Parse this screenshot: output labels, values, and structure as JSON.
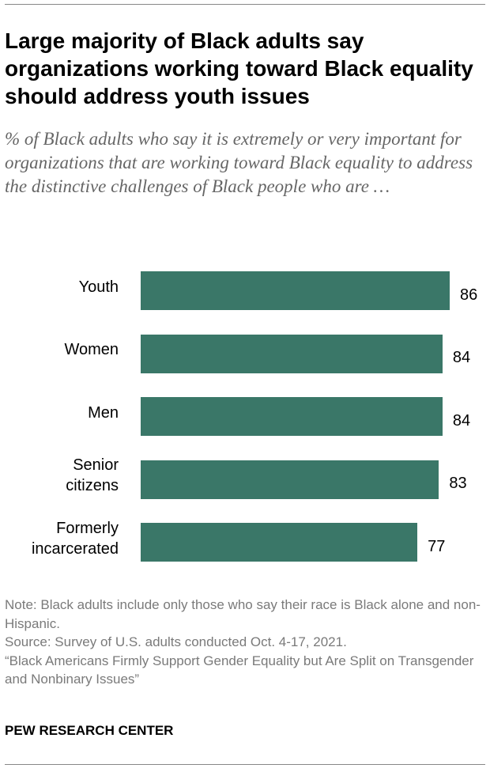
{
  "title": "Large majority of Black adults say organizations working toward Black equality should address youth issues",
  "subtitle": "% of Black adults who say it is extremely or very important for organizations that are working toward Black equality to address the distinctive challenges of Black people who are …",
  "chart_data": {
    "type": "bar",
    "orientation": "horizontal",
    "categories": [
      "Youth",
      "Women",
      "Men",
      "Senior citizens",
      "Formerly incarcerated"
    ],
    "values": [
      86,
      84,
      84,
      83,
      77
    ],
    "xlim": [
      0,
      100
    ],
    "grid": false,
    "bar_color": "#3a7768"
  },
  "notes": {
    "note": "Note: Black adults include only those who say their race is Black alone and non-Hispanic.",
    "source": "Source: Survey of U.S. adults conducted Oct. 4-17, 2021.",
    "report": "“Black Americans Firmly Support Gender Equality but Are Split on Transgender and Nonbinary Issues”"
  },
  "brand": "PEW RESEARCH CENTER"
}
